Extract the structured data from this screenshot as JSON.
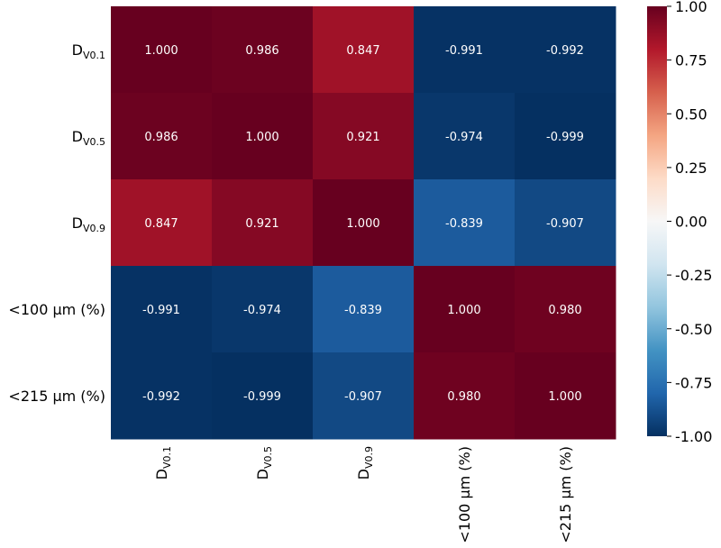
{
  "chart_data": {
    "type": "heatmap",
    "rows": [
      {
        "main": "D",
        "sub": "V0.1",
        "full": "DV0.1"
      },
      {
        "main": "D",
        "sub": "V0.5",
        "full": "DV0.5"
      },
      {
        "main": "D",
        "sub": "V0.9",
        "full": "DV0.9"
      },
      {
        "main": "<100 µm (%)",
        "sub": "",
        "full": "<100 µm (%)"
      },
      {
        "main": "<215 µm (%)",
        "sub": "",
        "full": "<215 µm (%)"
      }
    ],
    "columns": [
      {
        "main": "D",
        "sub": "V0.1",
        "full": "DV0.1"
      },
      {
        "main": "D",
        "sub": "V0.5",
        "full": "DV0.5"
      },
      {
        "main": "D",
        "sub": "V0.9",
        "full": "DV0.9"
      },
      {
        "main": "<100 µm (%)",
        "sub": "",
        "full": "<100 µm (%)"
      },
      {
        "main": "<215 µm (%)",
        "sub": "",
        "full": "<215 µm (%)"
      }
    ],
    "values": [
      [
        1.0,
        0.986,
        0.847,
        -0.991,
        -0.992
      ],
      [
        0.986,
        1.0,
        0.921,
        -0.974,
        -0.999
      ],
      [
        0.847,
        0.921,
        1.0,
        -0.839,
        -0.907
      ],
      [
        -0.991,
        -0.974,
        -0.839,
        1.0,
        0.98
      ],
      [
        -0.992,
        -0.999,
        -0.907,
        0.98,
        1.0
      ]
    ],
    "value_labels": [
      [
        "1.000",
        "0.986",
        "0.847",
        "-0.991",
        "-0.992"
      ],
      [
        "0.986",
        "1.000",
        "0.921",
        "-0.974",
        "-0.999"
      ],
      [
        "0.847",
        "0.921",
        "1.000",
        "-0.839",
        "-0.907"
      ],
      [
        "-0.991",
        "-0.974",
        "-0.839",
        "1.000",
        "0.980"
      ],
      [
        "-0.992",
        "-0.999",
        "-0.907",
        "0.980",
        "1.000"
      ]
    ],
    "colormap": "RdBu_r",
    "vmin": -1.0,
    "vmax": 1.0,
    "colorbar_ticks": [
      "1.00",
      "0.75",
      "0.50",
      "0.25",
      "0.00",
      "-0.25",
      "-0.50",
      "-0.75",
      "-1.00"
    ],
    "colorbar_tick_values": [
      1.0,
      0.75,
      0.5,
      0.25,
      0.0,
      -0.25,
      -0.5,
      -0.75,
      -1.0
    ],
    "title": "",
    "xlabel": "",
    "ylabel": ""
  }
}
